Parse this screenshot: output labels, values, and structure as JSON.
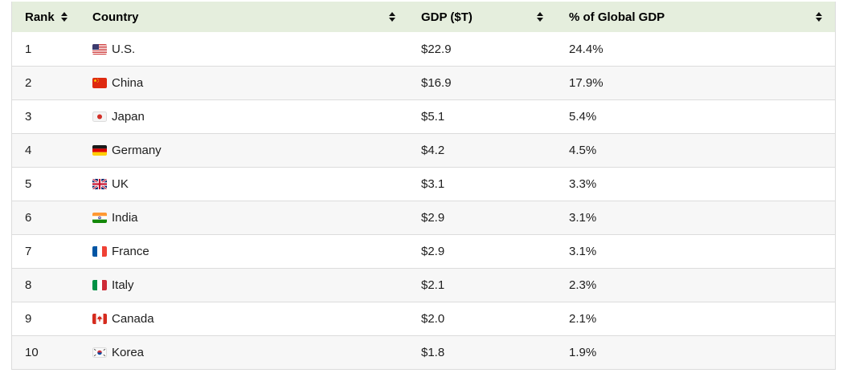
{
  "table": {
    "header": [
      {
        "label": "Rank"
      },
      {
        "label": "Country"
      },
      {
        "label": "GDP ($T)"
      },
      {
        "label": "% of Global GDP"
      }
    ],
    "rows": [
      {
        "rank": "1",
        "flag": "us-flag",
        "country": "U.S.",
        "gdp": "$22.9",
        "pct": "24.4%"
      },
      {
        "rank": "2",
        "flag": "china-flag",
        "country": "China",
        "gdp": "$16.9",
        "pct": "17.9%"
      },
      {
        "rank": "3",
        "flag": "japan-flag",
        "country": "Japan",
        "gdp": "$5.1",
        "pct": "5.4%"
      },
      {
        "rank": "4",
        "flag": "germany-flag",
        "country": "Germany",
        "gdp": "$4.2",
        "pct": "4.5%"
      },
      {
        "rank": "5",
        "flag": "uk-flag",
        "country": "UK",
        "gdp": "$3.1",
        "pct": "3.3%"
      },
      {
        "rank": "6",
        "flag": "india-flag",
        "country": "India",
        "gdp": "$2.9",
        "pct": "3.1%"
      },
      {
        "rank": "7",
        "flag": "france-flag",
        "country": "France",
        "gdp": "$2.9",
        "pct": "3.1%"
      },
      {
        "rank": "8",
        "flag": "italy-flag",
        "country": "Italy",
        "gdp": "$2.1",
        "pct": "2.3%"
      },
      {
        "rank": "9",
        "flag": "canada-flag",
        "country": "Canada",
        "gdp": "$2.0",
        "pct": "2.1%"
      },
      {
        "rank": "10",
        "flag": "korea-flag",
        "country": "Korea",
        "gdp": "$1.8",
        "pct": "1.9%"
      }
    ]
  },
  "icons": {
    "sort": "sort-updown-icon"
  },
  "colors": {
    "header_bg": "#e5eedd",
    "row_bg": "#ffffff",
    "row_alt_bg": "#f7f7f7",
    "border": "#dcdcdc",
    "text": "#1d1d1d"
  },
  "chart_data": {
    "type": "table",
    "columns": [
      "Rank",
      "Country",
      "GDP ($T)",
      "% of Global GDP"
    ],
    "rows": [
      [
        1,
        "U.S.",
        22.9,
        24.4
      ],
      [
        2,
        "China",
        16.9,
        17.9
      ],
      [
        3,
        "Japan",
        5.1,
        5.4
      ],
      [
        4,
        "Germany",
        4.2,
        4.5
      ],
      [
        5,
        "UK",
        3.1,
        3.3
      ],
      [
        6,
        "India",
        2.9,
        3.1
      ],
      [
        7,
        "France",
        2.9,
        3.1
      ],
      [
        8,
        "Italy",
        2.1,
        2.3
      ],
      [
        9,
        "Canada",
        2.0,
        2.1
      ],
      [
        10,
        "Korea",
        1.8,
        1.9
      ]
    ],
    "gdp_values_unit": "$T",
    "share_values_unit": "%",
    "sortable_columns": true
  }
}
